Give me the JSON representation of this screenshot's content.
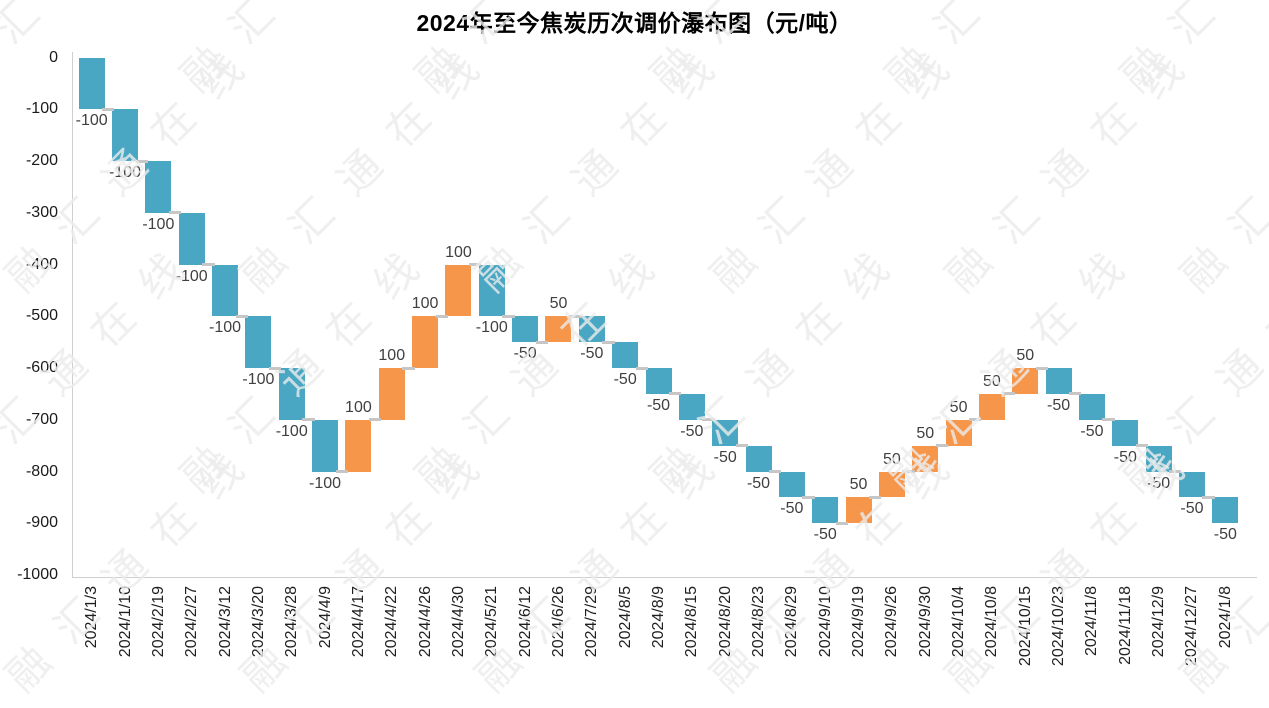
{
  "title": "2024年至今焦炭历次调价瀑布图（元/吨）",
  "watermark": {
    "text": "融汇通在线"
  },
  "colors": {
    "increase": "#F6964A",
    "decrease": "#4AA7C3",
    "axis_line": "#cfcfcf",
    "connector": "#c6c6c6",
    "value_label": "#404040",
    "tick_label": "#1a1a1a",
    "title": "#000000",
    "watermark": "#ECECEC"
  },
  "chart_data": {
    "type": "bar",
    "subtype": "waterfall",
    "title": "2024年至今焦炭历次调价瀑布图（元/吨）",
    "xlabel": "",
    "ylabel": "",
    "unit": "元/吨",
    "start_value": 0,
    "ylim": [
      -1000,
      0
    ],
    "yticks": [
      0,
      -100,
      -200,
      -300,
      -400,
      -500,
      -600,
      -700,
      -800,
      -900,
      -1000
    ],
    "grid": false,
    "legend": false,
    "categories": [
      "2024/1/3",
      "2024/1/10",
      "2024/2/19",
      "2024/2/27",
      "2024/3/12",
      "2024/3/20",
      "2024/3/28",
      "2024/4/9",
      "2024/4/17",
      "2024/4/22",
      "2024/4/26",
      "2024/4/30",
      "2024/5/21",
      "2024/6/12",
      "2024/6/26",
      "2024/7/29",
      "2024/8/5",
      "2024/8/9",
      "2024/8/15",
      "2024/8/20",
      "2024/8/23",
      "2024/8/29",
      "2024/9/10",
      "2024/9/19",
      "2024/9/26",
      "2024/9/30",
      "2024/10/4",
      "2024/10/8",
      "2024/10/15",
      "2024/10/23",
      "2024/11/8",
      "2024/11/18",
      "2024/12/9",
      "2024/12/27",
      "2024/1/8"
    ],
    "values": [
      -100,
      -100,
      -100,
      -100,
      -100,
      -100,
      -100,
      -100,
      100,
      100,
      100,
      100,
      -100,
      -50,
      50,
      -50,
      -50,
      -50,
      -50,
      -50,
      -50,
      -50,
      -50,
      50,
      50,
      50,
      50,
      50,
      50,
      -50,
      -50,
      -50,
      -50,
      -50,
      -50
    ],
    "cumulative_end": -900
  }
}
